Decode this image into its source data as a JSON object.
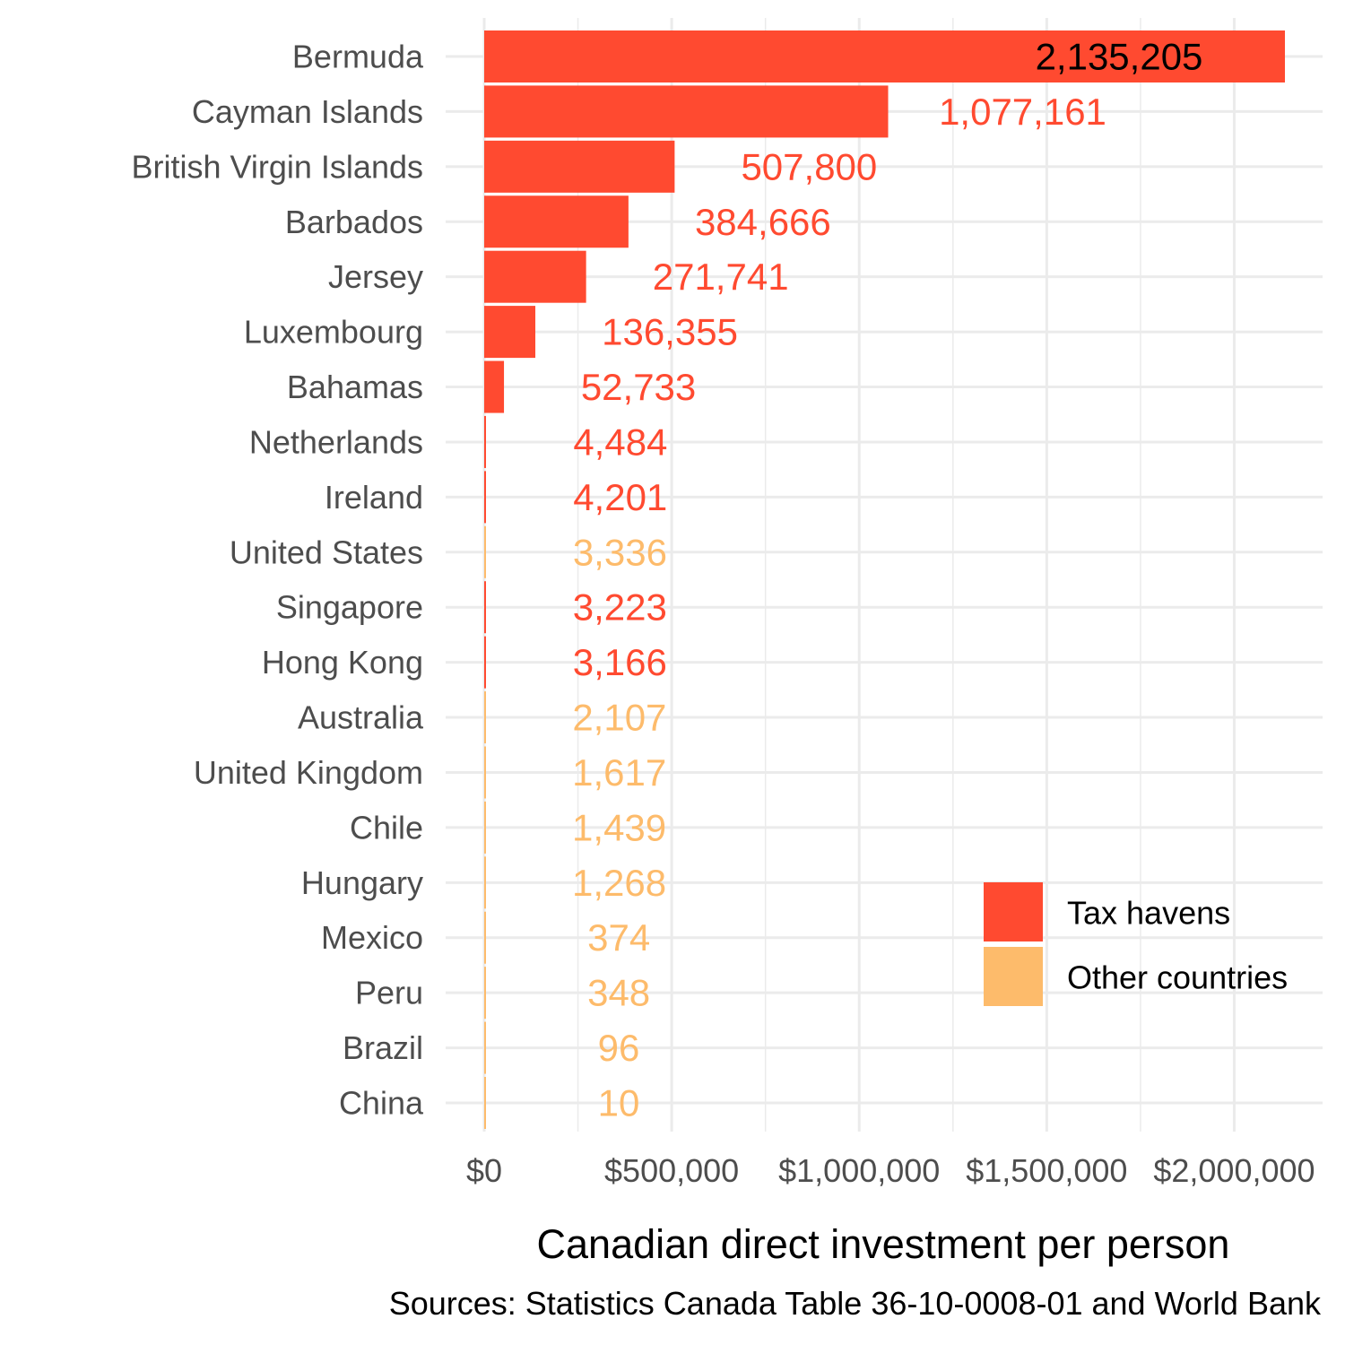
{
  "chart_data": {
    "type": "bar",
    "orientation": "horizontal",
    "xlabel": "Canadian direct investment per person",
    "caption": "Sources: Statistics Canada Table 36-10-0008-01 and World Bank",
    "xlim": [
      0,
      2135205
    ],
    "xticks": [
      0,
      500000,
      1000000,
      1500000,
      2000000
    ],
    "xtick_labels": [
      "$0",
      "$500,000",
      "$1,000,000",
      "$1,500,000",
      "$2,000,000"
    ],
    "grid": true,
    "legend": {
      "placement": "bottom-right",
      "entries": [
        {
          "name": "Tax havens",
          "color": "#ff4a30"
        },
        {
          "name": "Other countries",
          "color": "#fdbb6b"
        }
      ]
    },
    "categories": [
      "Bermuda",
      "Cayman Islands",
      "British Virgin Islands",
      "Barbados",
      "Jersey",
      "Luxembourg",
      "Bahamas",
      "Netherlands",
      "Ireland",
      "United States",
      "Singapore",
      "Hong Kong",
      "Australia",
      "United Kingdom",
      "Chile",
      "Hungary",
      "Mexico",
      "Peru",
      "Brazil",
      "China"
    ],
    "values": [
      2135205,
      1077161,
      507800,
      384666,
      271741,
      136355,
      52733,
      4484,
      4201,
      3336,
      3223,
      3166,
      2107,
      1617,
      1439,
      1268,
      374,
      348,
      96,
      10
    ],
    "value_labels": [
      "2,135,205",
      "1,077,161",
      "507,800",
      "384,666",
      "271,741",
      "136,355",
      "52,733",
      "4,484",
      "4,201",
      "3,336",
      "3,223",
      "3,166",
      "2,107",
      "1,617",
      "1,439",
      "1,268",
      "374",
      "348",
      "96",
      "10"
    ],
    "group": [
      "Tax havens",
      "Tax havens",
      "Tax havens",
      "Tax havens",
      "Tax havens",
      "Tax havens",
      "Tax havens",
      "Tax havens",
      "Tax havens",
      "Other countries",
      "Tax havens",
      "Tax havens",
      "Other countries",
      "Other countries",
      "Other countries",
      "Other countries",
      "Other countries",
      "Other countries",
      "Other countries",
      "Other countries"
    ],
    "top_label_color": "#000000"
  }
}
